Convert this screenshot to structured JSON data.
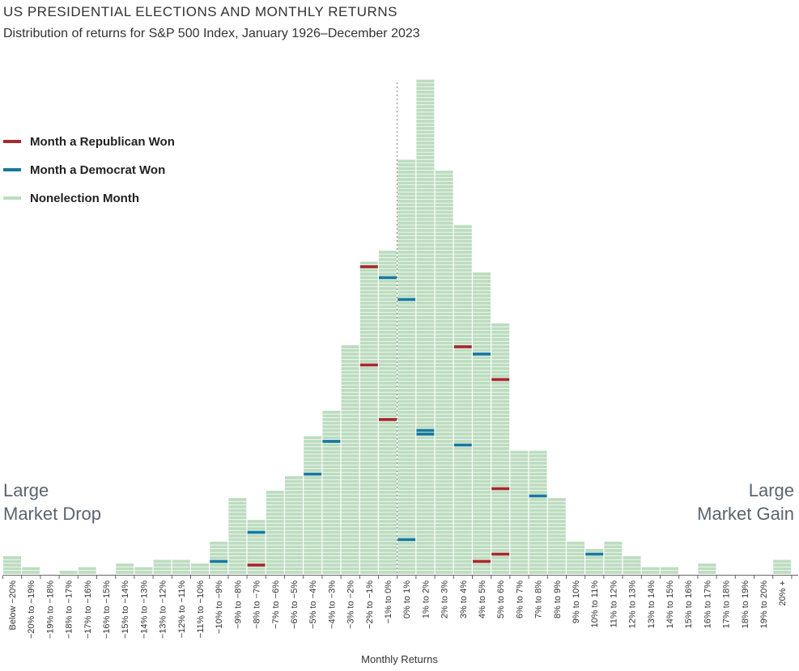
{
  "colors": {
    "nonelection": "#bcdcbf",
    "republican": "#a32a2d",
    "democrat": "#15799b",
    "axis": "#666666",
    "zero_line": "#888888"
  },
  "chart_data": {
    "type": "bar",
    "title": "US PRESIDENTIAL ELECTIONS AND MONTHLY RETURNS",
    "subtitle": "Distribution of returns for S&P 500 Index, January 1926–December 2023",
    "xlabel": "Monthly Returns",
    "ylabel": "",
    "categories": [
      "Below −20%",
      "−20% to −19%",
      "−19% to −18%",
      "−18% to −17%",
      "−17% to −16%",
      "−16% to −15%",
      "−15% to −14%",
      "−14% to −13%",
      "−13% to −12%",
      "−12% to −11%",
      "−11% to −10%",
      "−10% to −9%",
      "−9% to −8%",
      "−8% to −7%",
      "−7% to −6%",
      "−6% to −5%",
      "−5% to −4%",
      "−4% to −3%",
      "−3% to −2%",
      "−2% to −1%",
      "−1% to 0%",
      "0% to 1%",
      "1% to 2%",
      "2% to 3%",
      "3% to 4%",
      "4% to 5%",
      "5% to 6%",
      "6% to 7%",
      "7% to 8%",
      "8% to 9%",
      "9% to 10%",
      "10% to 11%",
      "11% to 12%",
      "12% to 13%",
      "13% to 14%",
      "14% to 15%",
      "15% to 16%",
      "16% to 17%",
      "17% to 18%",
      "18% to 19%",
      "19% to 20%",
      "20% +"
    ],
    "values": [
      5,
      2,
      0,
      1,
      2,
      0,
      3,
      2,
      4,
      4,
      3,
      9,
      21,
      15,
      23,
      27,
      38,
      45,
      63,
      86,
      89,
      114,
      136,
      111,
      96,
      83,
      69,
      34,
      34,
      21,
      9,
      7,
      9,
      5,
      2,
      2,
      0,
      3,
      0,
      0,
      0,
      4
    ],
    "republican_months": [
      [
        13,
        2
      ],
      [
        19,
        57
      ],
      [
        19,
        84
      ],
      [
        20,
        42
      ],
      [
        24,
        62
      ],
      [
        25,
        3
      ],
      [
        26,
        5
      ],
      [
        26,
        53
      ],
      [
        26,
        23
      ],
      [
        31,
        7
      ],
      [
        33,
        5
      ]
    ],
    "democrat_months": [
      [
        11,
        3
      ],
      [
        13,
        11
      ],
      [
        16,
        27
      ],
      [
        17,
        36
      ],
      [
        20,
        81
      ],
      [
        21,
        75
      ],
      [
        21,
        9
      ],
      [
        22,
        39
      ],
      [
        22,
        38
      ],
      [
        24,
        35
      ],
      [
        25,
        60
      ],
      [
        28,
        21
      ],
      [
        31,
        5
      ]
    ],
    "legend": [
      "Month a Republican Won",
      "Month a Democrat Won",
      "Nonelection Month"
    ],
    "annotations": {
      "left": [
        "Large",
        "Market Drop"
      ],
      "right": [
        "Large",
        "Market Gain"
      ]
    },
    "grid": false,
    "legend_position": "top-left"
  }
}
